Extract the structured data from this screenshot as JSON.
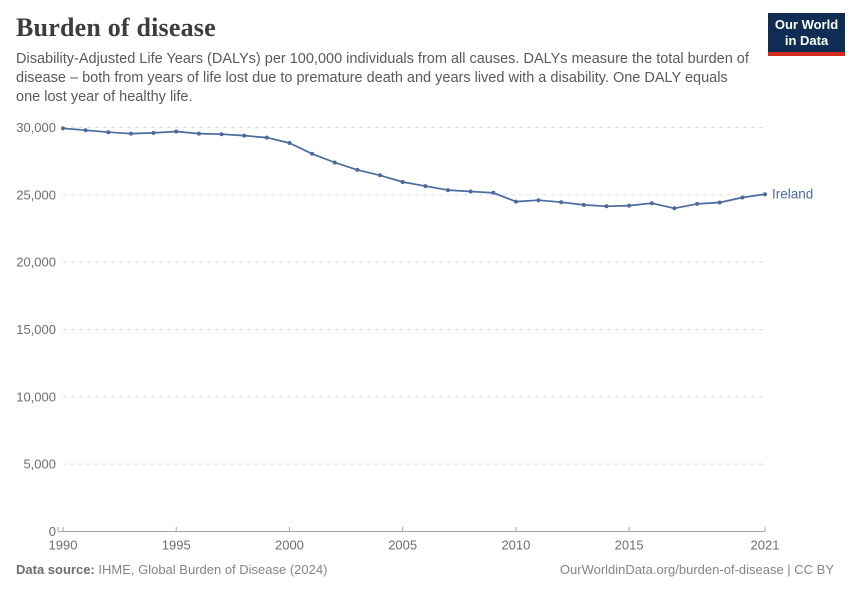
{
  "header": {
    "title": "Burden of disease",
    "subtitle": "Disability-Adjusted Life Years (DALYs) per 100,000 individuals from all causes. DALYs measure the total burden of disease – both from years of life lost due to premature death and years lived with a disability. One DALY equals one lost year of healthy life."
  },
  "logo": {
    "line1": "Our World",
    "line2": "in Data",
    "bg_color": "#0f2d52",
    "accent_color": "#d42b21",
    "text_color": "#ffffff"
  },
  "chart_data": {
    "type": "line",
    "title": "Burden of disease",
    "xlabel": "",
    "ylabel": "DALYs per 100,000 individuals",
    "xlim": [
      1990,
      2021
    ],
    "ylim": [
      0,
      30000
    ],
    "xticks": [
      1990,
      1995,
      2000,
      2005,
      2010,
      2015,
      2021
    ],
    "yticks": [
      0,
      5000,
      10000,
      15000,
      20000,
      25000,
      30000
    ],
    "grid": "dashed-horizontal",
    "legend_position": "end-of-line-label",
    "x": [
      1990,
      1991,
      1992,
      1993,
      1994,
      1995,
      1996,
      1997,
      1998,
      1999,
      2000,
      2001,
      2002,
      2003,
      2004,
      2005,
      2006,
      2007,
      2008,
      2009,
      2010,
      2011,
      2012,
      2013,
      2014,
      2015,
      2016,
      2017,
      2018,
      2019,
      2020,
      2021
    ],
    "series": [
      {
        "name": "Ireland",
        "color": "#4C6A9C",
        "values": [
          29930,
          29800,
          29650,
          29550,
          29600,
          29700,
          29550,
          29500,
          29400,
          29250,
          28850,
          28050,
          27400,
          26850,
          26450,
          25950,
          25650,
          25350,
          25250,
          25150,
          24500,
          24600,
          24450,
          24250,
          24150,
          24200,
          24380,
          24000,
          24330,
          24430,
          24800,
          25050
        ]
      }
    ],
    "colors": {
      "gridline": "#dddddd",
      "axis": "#a5a5a5",
      "tick_label": "#6e6e6e"
    }
  },
  "footer": {
    "source_label": "Data source:",
    "source_value": "IHME, Global Burden of Disease (2024)",
    "link_text": "OurWorldinData.org/burden-of-disease | CC BY"
  }
}
